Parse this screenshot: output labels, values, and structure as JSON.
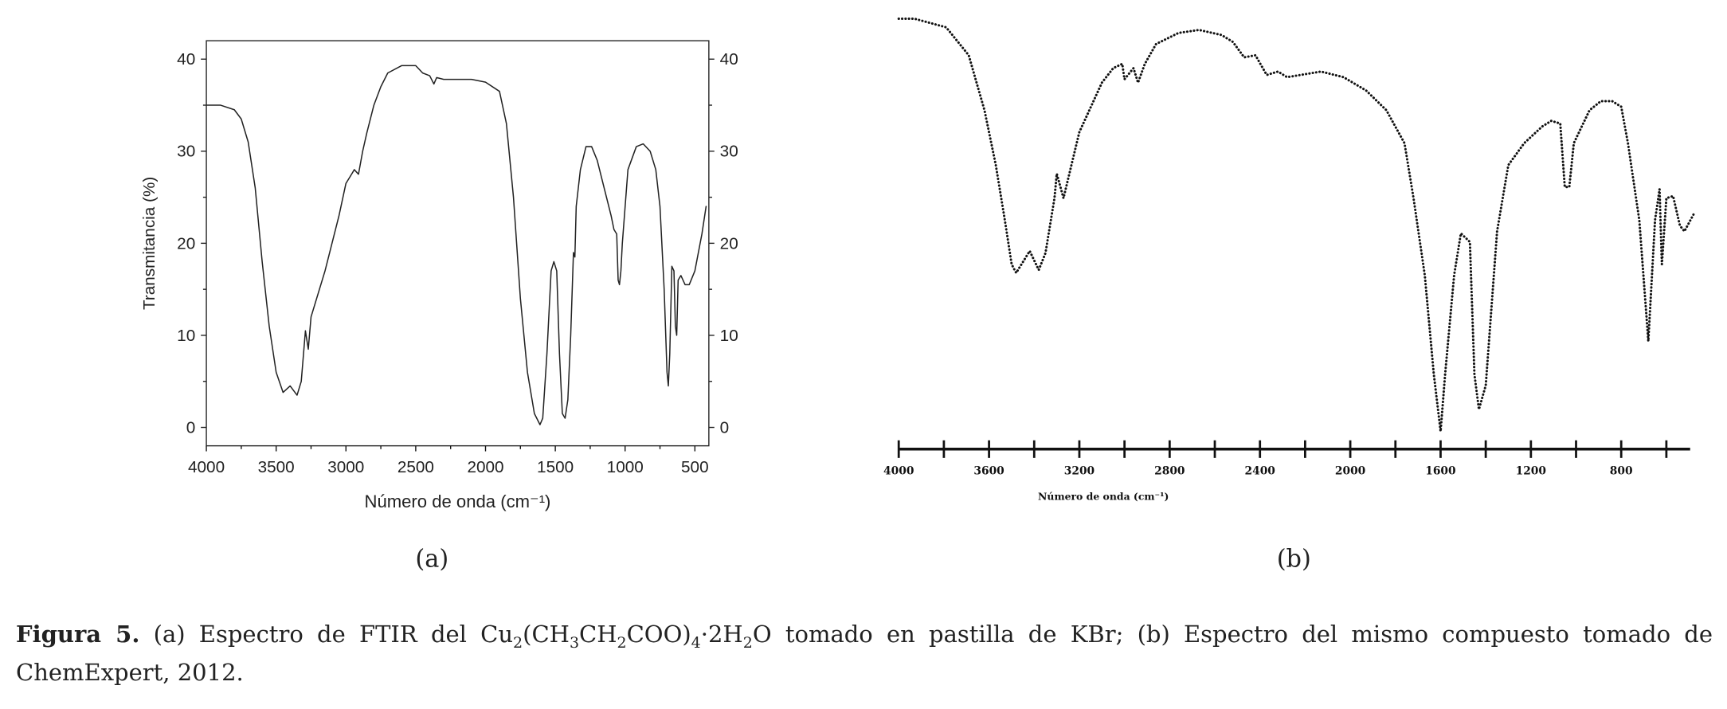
{
  "chart_data": [
    {
      "type": "line",
      "xlabel": "Número de onda (cm⁻¹)",
      "ylabel": "Transmitancia (%)",
      "panel": "(a)",
      "xlim": [
        4000,
        400
      ],
      "ylim": [
        -2,
        42
      ],
      "xticks": [
        4000,
        3500,
        3000,
        2500,
        2000,
        1500,
        1000,
        500
      ],
      "yticks": [
        0,
        10,
        20,
        30,
        40
      ],
      "xminor_ticks": [
        3750,
        3250,
        2750,
        2250,
        1750,
        1250,
        750
      ],
      "yminor_ticks": [
        5,
        15,
        25,
        35
      ],
      "right_axis": true,
      "color": "#222222",
      "x": [
        4000,
        3900,
        3800,
        3750,
        3700,
        3650,
        3600,
        3550,
        3500,
        3450,
        3400,
        3350,
        3320,
        3290,
        3270,
        3250,
        3150,
        3050,
        3000,
        2960,
        2940,
        2910,
        2880,
        2850,
        2800,
        2750,
        2700,
        2600,
        2500,
        2450,
        2400,
        2370,
        2350,
        2300,
        2200,
        2100,
        2000,
        1900,
        1850,
        1800,
        1750,
        1700,
        1650,
        1610,
        1590,
        1560,
        1530,
        1510,
        1490,
        1470,
        1450,
        1430,
        1410,
        1390,
        1370,
        1360,
        1350,
        1320,
        1280,
        1240,
        1200,
        1150,
        1100,
        1080,
        1060,
        1050,
        1040,
        1030,
        1020,
        980,
        920,
        870,
        820,
        780,
        750,
        720,
        700,
        690,
        680,
        665,
        650,
        640,
        630,
        620,
        600,
        570,
        540,
        500,
        450,
        420
      ],
      "values": [
        35,
        35,
        34.5,
        33.5,
        31,
        26,
        18,
        11,
        6,
        3.8,
        4.5,
        3.5,
        5,
        10.5,
        8.5,
        12,
        17,
        23,
        26.5,
        27.5,
        28,
        27.5,
        30,
        32,
        35,
        37,
        38.5,
        39.3,
        39.3,
        38.5,
        38.2,
        37.3,
        38,
        37.8,
        37.8,
        37.8,
        37.5,
        36.5,
        33,
        25,
        14,
        6,
        1.5,
        0.3,
        1,
        8,
        17,
        18,
        17,
        8,
        1.5,
        1,
        3,
        10,
        19,
        18.5,
        24,
        28,
        30.5,
        30.5,
        29,
        26,
        23,
        21.5,
        21,
        16,
        15.5,
        17,
        20,
        28,
        30.5,
        30.8,
        30,
        28,
        24,
        15,
        6,
        4.5,
        8,
        17.5,
        17,
        11,
        10,
        16,
        16.5,
        15.5,
        15.5,
        17,
        21,
        24
      ]
    },
    {
      "type": "line",
      "xlabel": "Número de onda (cm⁻¹)",
      "panel": "(b)",
      "xlim": [
        4000,
        480
      ],
      "ylim": [
        0,
        100
      ],
      "xticks": [
        4000,
        3600,
        3200,
        2800,
        2400,
        2000,
        1600,
        1200,
        800
      ],
      "xminor_ticks": [
        3800,
        3400,
        3000,
        2600,
        2200,
        1800,
        1400,
        1000,
        600
      ],
      "dotted": true,
      "color": "#111111",
      "x": [
        4000,
        3930,
        3790,
        3690,
        3620,
        3570,
        3530,
        3500,
        3480,
        3420,
        3380,
        3350,
        3310,
        3300,
        3270,
        3200,
        3100,
        3050,
        3010,
        3000,
        2960,
        2940,
        2910,
        2860,
        2760,
        2670,
        2570,
        2520,
        2470,
        2420,
        2370,
        2320,
        2280,
        2130,
        2030,
        1930,
        1840,
        1760,
        1720,
        1670,
        1630,
        1600,
        1580,
        1540,
        1510,
        1470,
        1450,
        1430,
        1400,
        1350,
        1300,
        1230,
        1150,
        1110,
        1070,
        1050,
        1030,
        1010,
        940,
        890,
        840,
        800,
        770,
        720,
        680,
        650,
        630,
        620,
        600,
        570,
        540,
        520,
        480
      ],
      "values": [
        98.2,
        98.2,
        96.2,
        89.7,
        76.9,
        64.1,
        51.3,
        41.0,
        39.0,
        44.1,
        39.7,
        43.6,
        56.4,
        62.1,
        56.4,
        71.8,
        83.3,
        86.7,
        87.7,
        84.1,
        86.7,
        83.3,
        87.7,
        92.3,
        94.9,
        95.6,
        94.4,
        92.8,
        89.2,
        89.7,
        85.1,
        85.9,
        84.6,
        85.9,
        84.6,
        81.5,
        76.9,
        69.2,
        56.4,
        38.5,
        15.4,
        2.1,
        15.4,
        38.5,
        48.2,
        46.2,
        15.4,
        7.2,
        12.8,
        48.7,
        64.1,
        69.2,
        73.1,
        74.4,
        73.8,
        59.0,
        59.0,
        69.2,
        76.9,
        79.0,
        79.0,
        77.7,
        69.2,
        51.3,
        23.1,
        51.3,
        58.5,
        41.0,
        56.4,
        56.9,
        50.0,
        48.7,
        52.6
      ]
    }
  ],
  "caption": {
    "label": "Figura 5.",
    "line1": [
      {
        "text": " (a) Espectro de FTIR del Cu"
      },
      {
        "text": "2",
        "sub": true
      },
      {
        "text": "(CH"
      },
      {
        "text": "3",
        "sub": true
      },
      {
        "text": "CH"
      },
      {
        "text": "2",
        "sub": true
      },
      {
        "text": "COO)"
      },
      {
        "text": "4",
        "sub": true
      },
      {
        "text": "·2H"
      },
      {
        "text": "2",
        "sub": true
      },
      {
        "text": "O tomado en pastilla de KBr; (b) Espectro del mismo compuesto tomado de"
      }
    ],
    "line2": "ChemExpert, 2012."
  }
}
